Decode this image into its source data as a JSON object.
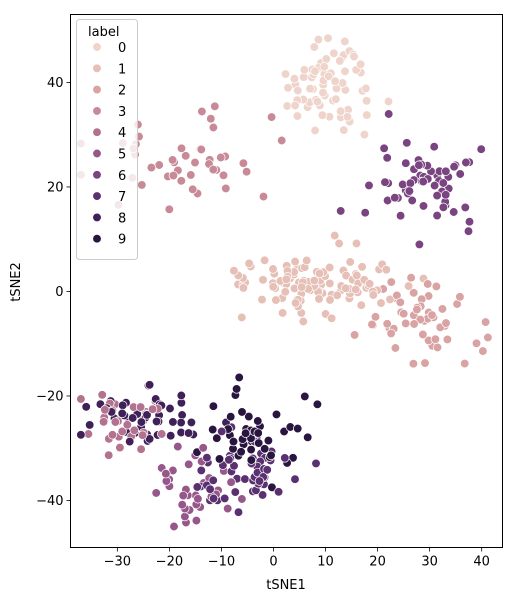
{
  "chart_data": {
    "type": "scatter",
    "xlabel": "tSNE1",
    "ylabel": "tSNE2",
    "xlim": [
      -39,
      44
    ],
    "ylim": [
      -49,
      53
    ],
    "xticks": [
      -30,
      -20,
      -10,
      0,
      10,
      20,
      30,
      40
    ],
    "yticks": [
      -40,
      -20,
      0,
      20,
      40
    ],
    "grid": false,
    "legend": {
      "title": "label",
      "placement": "top-left",
      "entries": [
        "0",
        "1",
        "2",
        "3",
        "4",
        "5",
        "6",
        "7",
        "8",
        "9"
      ]
    },
    "colors": [
      "#efd4cb",
      "#e6bfb6",
      "#d9a3a3",
      "#c98a98",
      "#b3738f",
      "#96588a",
      "#7a4480",
      "#5a3070",
      "#3f2058",
      "#2a1540"
    ],
    "clusters": [
      {
        "label": "0",
        "center": [
          11,
          40
        ],
        "spread": [
          4.0,
          5.0
        ],
        "n": 70
      },
      {
        "label": "1",
        "center": [
          8,
          2
        ],
        "spread": [
          9.0,
          3.0
        ],
        "n": 110
      },
      {
        "label": "2",
        "center": [
          28,
          -5
        ],
        "spread": [
          5.0,
          4.0
        ],
        "n": 55
      },
      {
        "label": "3",
        "center": [
          -14,
          25
        ],
        "spread": [
          8.0,
          4.0
        ],
        "n": 45
      },
      {
        "label": "4",
        "center": [
          -28,
          -25
        ],
        "spread": [
          4.0,
          3.0
        ],
        "n": 35
      },
      {
        "label": "5",
        "center": [
          -15,
          -38
        ],
        "spread": [
          5.0,
          3.0
        ],
        "n": 35
      },
      {
        "label": "6",
        "center": [
          28,
          20
        ],
        "spread": [
          6.0,
          4.0
        ],
        "n": 60
      },
      {
        "label": "7",
        "center": [
          -6,
          -35
        ],
        "spread": [
          5.0,
          3.0
        ],
        "n": 50
      },
      {
        "label": "8",
        "center": [
          -25,
          -24
        ],
        "spread": [
          5.0,
          3.0
        ],
        "n": 50
      },
      {
        "label": "9",
        "center": [
          -4,
          -28
        ],
        "spread": [
          4.0,
          4.0
        ],
        "n": 50
      }
    ]
  }
}
